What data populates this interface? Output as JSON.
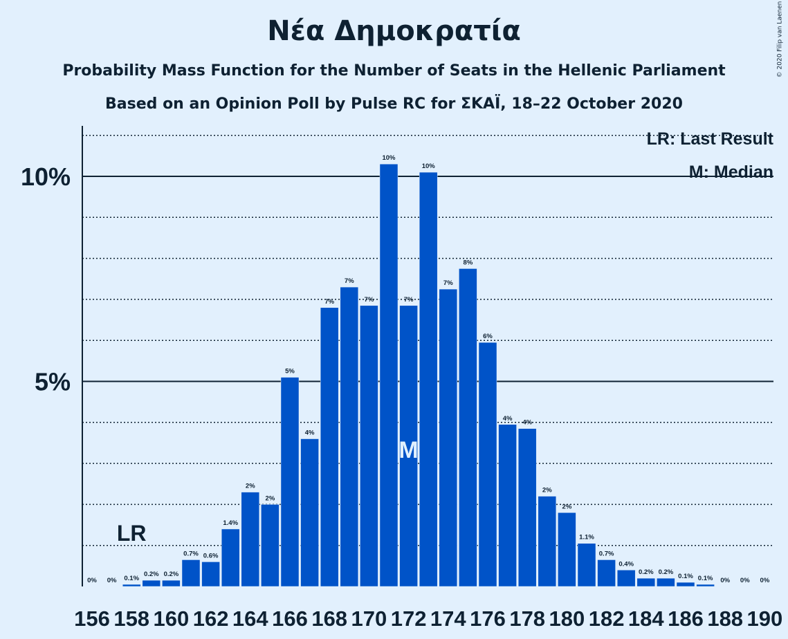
{
  "title": "Νέα Δημοκρατία",
  "subtitle1": "Probability Mass Function for the Number of Seats in the Hellenic Parliament",
  "subtitle2": "Based on an Opinion Poll by Pulse RC for ΣΚΑΪ, 18–22 October 2020",
  "copyright": "© 2020 Filip van Laenen",
  "legend": {
    "last_result": "LR: Last Result",
    "median": "M: Median"
  },
  "colors": {
    "bar": "#0053c8",
    "background": "#e2f0fd",
    "text": "#0e2132"
  },
  "chart_data": {
    "type": "bar",
    "x": [
      156,
      157,
      158,
      159,
      160,
      161,
      162,
      163,
      164,
      165,
      166,
      167,
      168,
      169,
      170,
      171,
      172,
      173,
      174,
      175,
      176,
      177,
      178,
      179,
      180,
      181,
      182,
      183,
      184,
      185,
      186,
      187,
      188,
      189,
      190
    ],
    "values": [
      0,
      0,
      0.05,
      0.15,
      0.15,
      0.65,
      0.6,
      1.4,
      2.3,
      2.0,
      5.1,
      3.6,
      6.8,
      7.3,
      6.85,
      10.3,
      6.85,
      10.1,
      7.25,
      7.75,
      5.95,
      3.95,
      3.85,
      2.2,
      1.8,
      1.05,
      0.65,
      0.4,
      0.2,
      0.2,
      0.1,
      0.05,
      0,
      0,
      0
    ],
    "data_labels": [
      "0%",
      "0%",
      "0.1%",
      "0.2%",
      "0.2%",
      "0.7%",
      "0.6%",
      "1.4%",
      "2%",
      "2%",
      "5%",
      "4%",
      "7%",
      "7%",
      "7%",
      "10%",
      "7%",
      "10%",
      "7%",
      "8%",
      "6%",
      "4%",
      "4%",
      "2%",
      "2%",
      "1.1%",
      "0.7%",
      "0.4%",
      "0.2%",
      "0.2%",
      "0.1%",
      "0.1%",
      "0%",
      "0%",
      "0%"
    ],
    "x_tick_labels": [
      "156",
      "158",
      "160",
      "162",
      "164",
      "166",
      "168",
      "170",
      "172",
      "174",
      "176",
      "178",
      "180",
      "182",
      "184",
      "186",
      "188",
      "190"
    ],
    "y_tick_labels": [
      "5%",
      "10%"
    ],
    "y_ticks": [
      5,
      10
    ],
    "ylim": [
      0,
      11.2
    ],
    "last_result": {
      "seat": 158,
      "label": "LR"
    },
    "median": {
      "seat": 172,
      "label": "M"
    },
    "grid": true,
    "legend_position": "top-right"
  }
}
